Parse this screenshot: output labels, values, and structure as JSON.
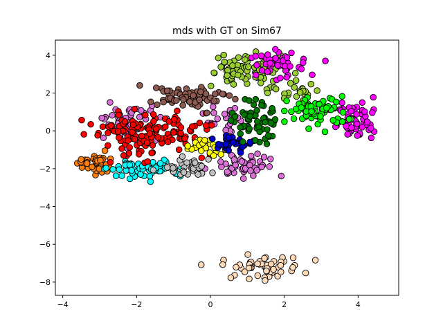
{
  "chart_data": {
    "type": "scatter",
    "title": "mds with GT on Sim67",
    "xlabel": "",
    "ylabel": "",
    "xlim": [
      -4.2,
      5.1
    ],
    "ylim": [
      -8.7,
      4.8
    ],
    "xticks": [
      -4,
      -2,
      0,
      2,
      4
    ],
    "yticks": [
      -8,
      -6,
      -4,
      -2,
      0,
      2,
      4
    ],
    "xtick_labels": [
      "−4",
      "−2",
      "0",
      "2",
      "4"
    ],
    "ytick_labels": [
      "−8",
      "−6",
      "−4",
      "−2",
      "0",
      "2",
      "4"
    ],
    "grid": false,
    "legend": "none",
    "marker_edge_color": "#000000",
    "series": [
      {
        "color": "#da70d6",
        "clusters": [
          {
            "cx": -2.2,
            "cy": 0.4,
            "sx": 0.55,
            "sy": 0.55,
            "n": 55
          },
          {
            "cx": 0.9,
            "cy": -1.8,
            "sx": 0.45,
            "sy": 0.3,
            "n": 55
          },
          {
            "cx": 0.3,
            "cy": 0.5,
            "sx": 0.3,
            "sy": 0.4,
            "n": 25
          }
        ]
      },
      {
        "color": "#ff7f0e",
        "clusters": [
          {
            "cx": -3.1,
            "cy": -1.8,
            "sx": 0.3,
            "sy": 0.25,
            "n": 45
          }
        ]
      },
      {
        "color": "#00ffff",
        "clusters": [
          {
            "cx": -1.8,
            "cy": -2.0,
            "sx": 0.5,
            "sy": 0.22,
            "n": 60
          }
        ]
      },
      {
        "color": "#c0c0c0",
        "clusters": [
          {
            "cx": -0.6,
            "cy": -1.9,
            "sx": 0.35,
            "sy": 0.25,
            "n": 35
          }
        ]
      },
      {
        "color": "#ff0000",
        "clusters": [
          {
            "cx": -1.6,
            "cy": -0.2,
            "sx": 0.75,
            "sy": 0.55,
            "n": 140
          }
        ]
      },
      {
        "color": "#8b5a50",
        "clusters": [
          {
            "cx": -0.6,
            "cy": 1.8,
            "sx": 0.6,
            "sy": 0.3,
            "n": 70
          }
        ]
      },
      {
        "color": "#ffff00",
        "clusters": [
          {
            "cx": -0.1,
            "cy": -0.8,
            "sx": 0.3,
            "sy": 0.25,
            "n": 30
          }
        ]
      },
      {
        "color": "#0000cd",
        "clusters": [
          {
            "cx": 0.6,
            "cy": -0.7,
            "sx": 0.3,
            "sy": 0.22,
            "n": 35
          }
        ]
      },
      {
        "color": "#007800",
        "clusters": [
          {
            "cx": 1.2,
            "cy": 0.6,
            "sx": 0.35,
            "sy": 0.6,
            "n": 60
          }
        ]
      },
      {
        "color": "#9acd32",
        "clusters": [
          {
            "cx": 1.0,
            "cy": 3.2,
            "sx": 0.5,
            "sy": 0.35,
            "n": 80
          },
          {
            "cx": 2.2,
            "cy": 2.2,
            "sx": 0.4,
            "sy": 0.25,
            "n": 25
          }
        ]
      },
      {
        "color": "#ff00ff",
        "clusters": [
          {
            "cx": 1.9,
            "cy": 3.5,
            "sx": 0.45,
            "sy": 0.35,
            "n": 50
          },
          {
            "cx": 3.9,
            "cy": 0.6,
            "sx": 0.35,
            "sy": 0.55,
            "n": 55
          }
        ]
      },
      {
        "color": "#00ff00",
        "clusters": [
          {
            "cx": 2.9,
            "cy": 1.0,
            "sx": 0.4,
            "sy": 0.4,
            "n": 70
          }
        ]
      },
      {
        "color": "#ffdab9",
        "clusters": [
          {
            "cx": 1.4,
            "cy": -7.2,
            "sx": 0.55,
            "sy": 0.3,
            "n": 55
          }
        ]
      }
    ]
  }
}
